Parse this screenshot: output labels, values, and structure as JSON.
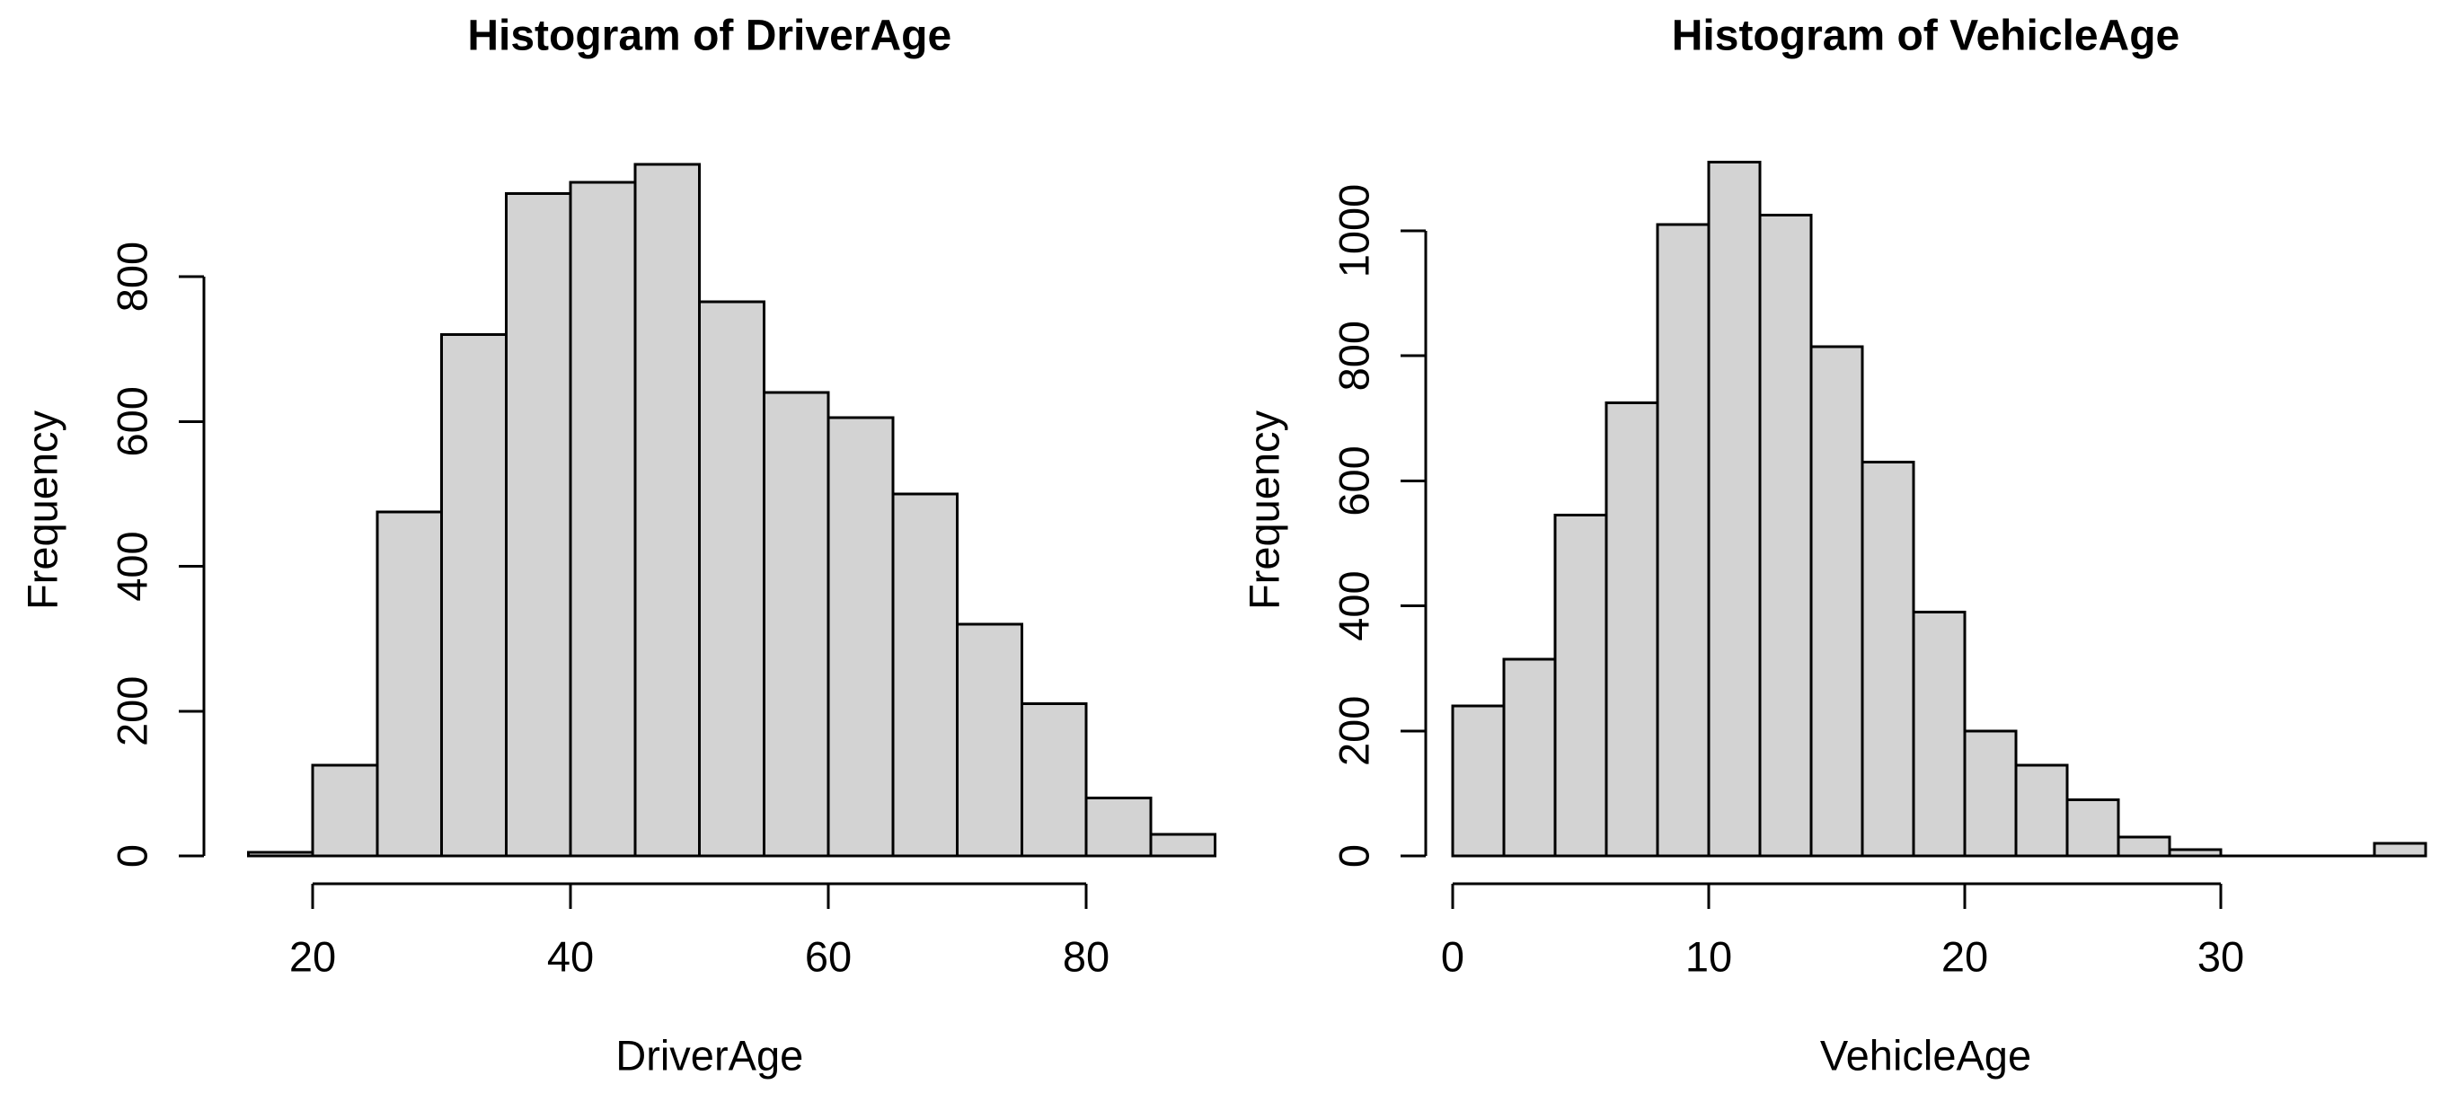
{
  "figure": {
    "background": "#ffffff",
    "axis_color": "#000000",
    "text_color": "#000000"
  },
  "chart_data": [
    {
      "type": "bar",
      "variant": "histogram",
      "title": "Histogram of DriverAge",
      "xlabel": "DriverAge",
      "ylabel": "Frequency",
      "bin_start": 15,
      "bin_width": 5,
      "bin_edges": [
        15,
        20,
        25,
        30,
        35,
        40,
        45,
        50,
        55,
        60,
        65,
        70,
        75,
        80,
        85,
        90
      ],
      "counts": [
        5,
        125,
        475,
        720,
        915,
        930,
        955,
        765,
        640,
        605,
        500,
        320,
        210,
        80,
        30
      ],
      "x_ticks": [
        20,
        40,
        60,
        80
      ],
      "y_ticks": [
        0,
        200,
        400,
        600,
        800
      ],
      "xlim": [
        15,
        90
      ],
      "ylim": [
        0,
        955
      ],
      "grid": false,
      "legend": "none",
      "bar_fill": "#d3d3d3",
      "bar_stroke": "#000000"
    },
    {
      "type": "bar",
      "variant": "histogram",
      "title": "Histogram of VehicleAge",
      "xlabel": "VehicleAge",
      "ylabel": "Frequency",
      "bin_start": 0,
      "bin_width": 2,
      "bin_edges": [
        0,
        2,
        4,
        6,
        8,
        10,
        12,
        14,
        16,
        18,
        20,
        22,
        24,
        26,
        28,
        30,
        32,
        34,
        36,
        38
      ],
      "counts": [
        240,
        315,
        545,
        725,
        1010,
        1110,
        1025,
        815,
        630,
        390,
        200,
        145,
        90,
        30,
        10,
        0,
        0,
        0,
        20
      ],
      "x_ticks": [
        0,
        10,
        20,
        30
      ],
      "y_ticks": [
        0,
        200,
        400,
        600,
        800,
        1000
      ],
      "xlim": [
        0,
        38
      ],
      "ylim": [
        0,
        1110
      ],
      "grid": false,
      "legend": "none",
      "bar_fill": "#d3d3d3",
      "bar_stroke": "#000000"
    }
  ]
}
